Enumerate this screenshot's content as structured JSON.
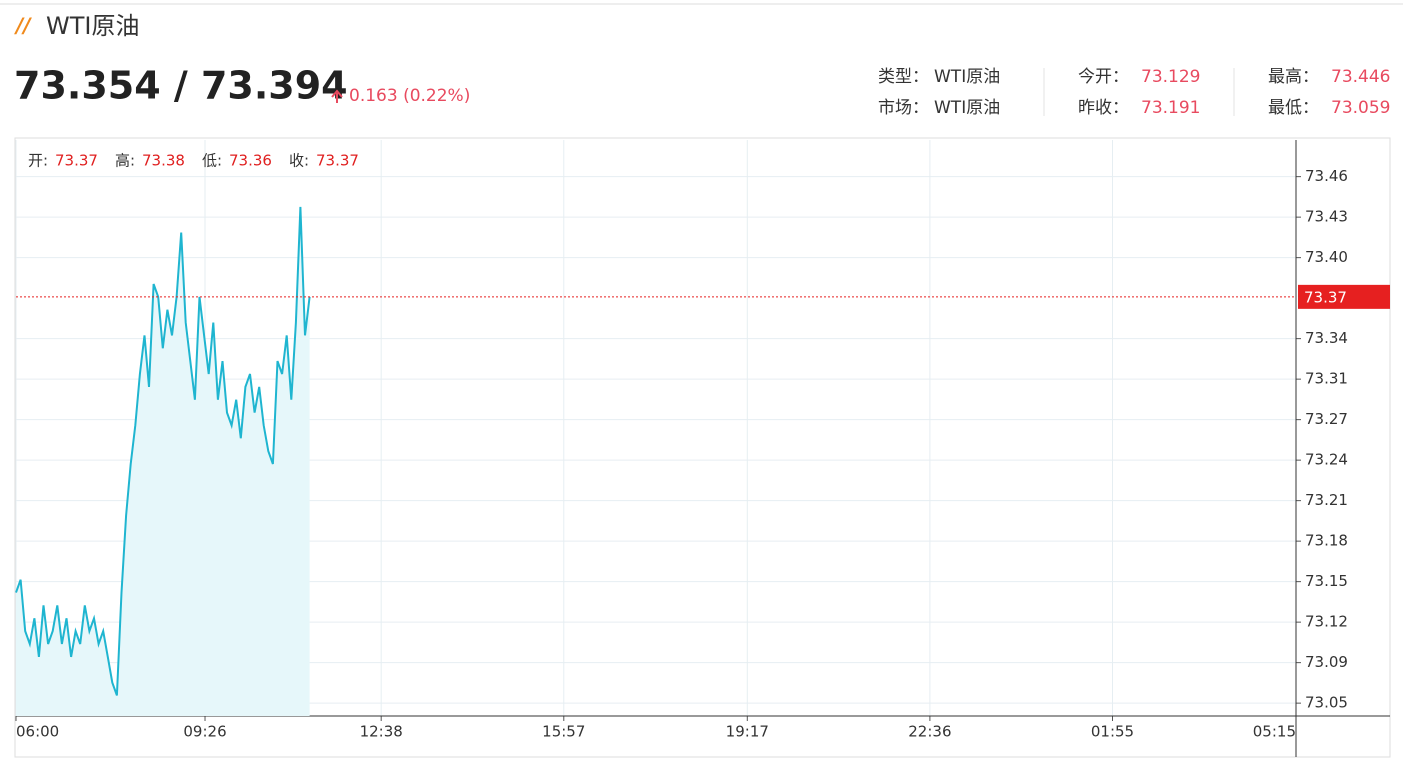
{
  "header": {
    "title": "WTI原油",
    "price": "73.354 / 73.394",
    "change": "0.163 (0.22%)",
    "info": [
      [
        {
          "label": "类型：",
          "value": "WTI原油"
        },
        {
          "label": "今开：",
          "value": "73.129"
        },
        {
          "label": "最高：",
          "value": "73.446"
        }
      ],
      [
        {
          "label": "市场：",
          "value": "WTI原油"
        },
        {
          "label": "昨收：",
          "value": "73.191"
        },
        {
          "label": "最低：",
          "value": "73.059"
        }
      ]
    ]
  },
  "chart_data": {
    "type": "line",
    "ohlc": [
      {
        "label": "开:",
        "value": 73.37
      },
      {
        "label": "高:",
        "value": 73.38
      },
      {
        "label": "低:",
        "value": 73.36
      },
      {
        "label": "收:",
        "value": 73.37
      }
    ],
    "x": [
      "06:00",
      "06:05",
      "06:10",
      "06:15",
      "06:20",
      "06:25",
      "06:30",
      "06:35",
      "06:40",
      "06:45",
      "06:50",
      "06:55",
      "07:00",
      "07:05",
      "07:10",
      "07:15",
      "07:20",
      "07:25",
      "07:30",
      "07:35",
      "07:40",
      "07:45",
      "07:50",
      "07:55",
      "08:00",
      "08:05",
      "08:10",
      "08:15",
      "08:20",
      "08:25",
      "08:30",
      "08:35",
      "08:40",
      "08:45",
      "08:50",
      "08:55",
      "09:00",
      "09:05",
      "09:10",
      "09:15",
      "09:20",
      "09:25",
      "09:30",
      "09:35",
      "09:40",
      "09:45",
      "09:50",
      "09:55",
      "10:00",
      "10:05",
      "10:10",
      "10:15",
      "10:20",
      "10:25",
      "10:30",
      "10:35",
      "10:40",
      "10:45",
      "10:50",
      "10:55",
      "11:00",
      "11:05",
      "11:10",
      "11:15",
      "11:20"
    ],
    "values": [
      73.14,
      73.15,
      73.11,
      73.1,
      73.12,
      73.09,
      73.13,
      73.1,
      73.11,
      73.13,
      73.1,
      73.12,
      73.09,
      73.11,
      73.1,
      73.13,
      73.11,
      73.12,
      73.1,
      73.11,
      73.09,
      73.07,
      73.06,
      73.14,
      73.2,
      73.24,
      73.27,
      73.31,
      73.34,
      73.3,
      73.38,
      73.37,
      73.33,
      73.36,
      73.34,
      73.37,
      73.42,
      73.35,
      73.32,
      73.29,
      73.37,
      73.34,
      73.31,
      73.35,
      73.29,
      73.32,
      73.28,
      73.27,
      73.29,
      73.26,
      73.3,
      73.31,
      73.28,
      73.3,
      73.27,
      73.25,
      73.24,
      73.32,
      73.31,
      73.34,
      73.29,
      73.35,
      73.44,
      73.34,
      73.37
    ],
    "color": "#1fb5d0",
    "area_color": "#e6f7fa",
    "last_price": 73.37,
    "last_price_color": "#e62020",
    "xlim": [
      "06:00",
      "05:15"
    ],
    "xticks": [
      "06:00",
      "09:26",
      "12:38",
      "15:57",
      "19:17",
      "22:36",
      "01:55",
      "05:15"
    ],
    "ylim": [
      73.044,
      73.492
    ],
    "yticks": [
      {
        "value": 73.054,
        "label": "73.05"
      },
      {
        "value": 73.0855,
        "label": "73.09"
      },
      {
        "value": 73.117,
        "label": "73.12"
      },
      {
        "value": 73.1485,
        "label": "73.15"
      },
      {
        "value": 73.18,
        "label": "73.18"
      },
      {
        "value": 73.2115,
        "label": "73.21"
      },
      {
        "value": 73.243,
        "label": "73.24"
      },
      {
        "value": 73.2745,
        "label": "73.27"
      },
      {
        "value": 73.306,
        "label": "73.31"
      },
      {
        "value": 73.3375,
        "label": "73.34"
      },
      {
        "value": 73.4005,
        "label": "73.40"
      },
      {
        "value": 73.432,
        "label": "73.43"
      },
      {
        "value": 73.4635,
        "label": "73.46"
      }
    ],
    "grid": true
  }
}
